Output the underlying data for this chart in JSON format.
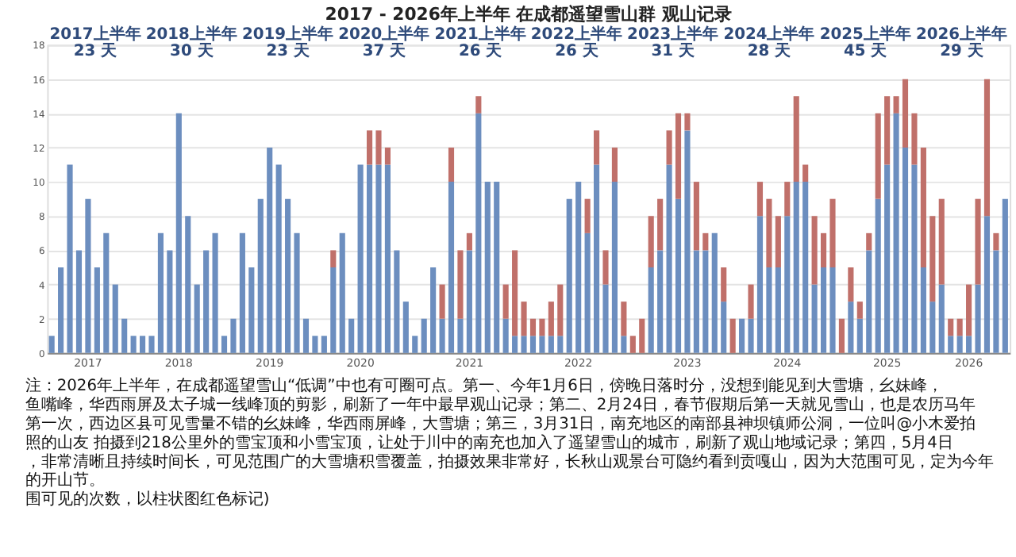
{
  "chart_data": {
    "type": "bar",
    "stacked": true,
    "title": "2017 - 2026年上半年 在成都遥望雪山群 观山记录",
    "categories": [
      null,
      null,
      null,
      null,
      "2017",
      null,
      null,
      null,
      null,
      null,
      null,
      null,
      null,
      null,
      "2018",
      null,
      null,
      null,
      null,
      null,
      null,
      null,
      null,
      null,
      "2019",
      null,
      null,
      null,
      null,
      null,
      null,
      null,
      null,
      null,
      "2020",
      null,
      null,
      null,
      null,
      null,
      null,
      null,
      null,
      null,
      null,
      null,
      "2021",
      null,
      null,
      null,
      null,
      null,
      null,
      null,
      null,
      null,
      null,
      null,
      "2022",
      null,
      null,
      null,
      null,
      null,
      null,
      null,
      null,
      null,
      null,
      null,
      "2023",
      null,
      null,
      null,
      null,
      null,
      null,
      null,
      null,
      null,
      null,
      "2024",
      null,
      null,
      null,
      null,
      null,
      null,
      null,
      null,
      null,
      null,
      "2025",
      null,
      null,
      null,
      null,
      null,
      null,
      null,
      null,
      "2026",
      null,
      null,
      null,
      null
    ],
    "series": [
      {
        "color": "#6c8ebf",
        "values": [
          1,
          5,
          11,
          6,
          9,
          5,
          7,
          4,
          2,
          1,
          1,
          1,
          7,
          6,
          14,
          8,
          4,
          6,
          7,
          1,
          2,
          7,
          5,
          9,
          12,
          11,
          9,
          7,
          2,
          1,
          1,
          5,
          7,
          2,
          11,
          11,
          11,
          11,
          6,
          3,
          1,
          2,
          5,
          2,
          10,
          2,
          6,
          14,
          10,
          10,
          2,
          1,
          1,
          1,
          1,
          1,
          1,
          9,
          10,
          7,
          11,
          4,
          10,
          1,
          0,
          0,
          5,
          6,
          11,
          9,
          13,
          6,
          6,
          7,
          3,
          0,
          2,
          2,
          8,
          5,
          5,
          8,
          10,
          10,
          4,
          5,
          5,
          0,
          3,
          2,
          6,
          9,
          11,
          14,
          12,
          11,
          5,
          3,
          4,
          1,
          1,
          1,
          4,
          8,
          6,
          9
        ]
      },
      {
        "color": "#c0706a",
        "values": [
          0,
          0,
          0,
          0,
          0,
          0,
          0,
          0,
          0,
          0,
          0,
          0,
          0,
          0,
          0,
          0,
          0,
          0,
          0,
          0,
          0,
          0,
          0,
          0,
          0,
          0,
          0,
          0,
          0,
          0,
          0,
          1,
          0,
          0,
          0,
          2,
          2,
          1,
          0,
          0,
          0,
          0,
          0,
          2,
          2,
          4,
          1,
          1,
          0,
          0,
          2,
          5,
          2,
          1,
          1,
          2,
          3,
          0,
          0,
          2,
          2,
          2,
          2,
          2,
          1,
          2,
          3,
          3,
          2,
          5,
          1,
          4,
          1,
          0,
          2,
          2,
          0,
          2,
          2,
          4,
          3,
          2,
          5,
          1,
          4,
          2,
          4,
          2,
          2,
          1,
          1,
          5,
          4,
          1,
          4,
          3,
          7,
          5,
          5,
          1,
          1,
          3,
          5,
          8,
          1,
          0
        ]
      }
    ],
    "ylim": [
      0,
      18
    ],
    "yticks": [
      0,
      2,
      4,
      6,
      8,
      10,
      12,
      14,
      16,
      18
    ],
    "grid": "y",
    "legend": false,
    "annotations": [
      "2017上半年 23 天",
      "2018上半年 30 天",
      "2019上半年 23 天",
      "2020上半年 37 天",
      "2021上半年 26 天",
      "2022上半年 26 天",
      "2023上半年 31 天",
      "2024上半年 28 天",
      "2025上半年 45 天",
      "2026上半年 29 天",
      "注：2026年上半年，在成都遥望雪山“低调”中也有可圈可点。第一、今年1月6日，傍晚日落时分，没想到能见到大雪塘，幺妹峰，鱼嘴峰，华西雨屏及太子城一线峰顶的剪影，刷新了一年中最早观山记录；第二、2月24日，春节假期后第一天就见雪山，也是农历马年第一次，西边区县可见雪量不错的幺妹峰，华西雨屏峰，大雪塘；第三，3月31日，南充地区的南部县神坝镇师公洞，一位叫@小木爱拍照的山友 拍摄到218公里外的雪宝顶和小雪宝顶，让处于川中的南充也加入了遥望雪山的城市，刷新了观山地域记录；第四，5月4日，非常清晰且持续时间长，可见范围广的大雪塘积雪覆盖，拍摄效果非常好，长秋山观景台可隐约看到贡嘎山，因为大范围可见，定为今年的开山节。",
      "围可见的次数，以柱状图红色标记)"
    ]
  }
}
